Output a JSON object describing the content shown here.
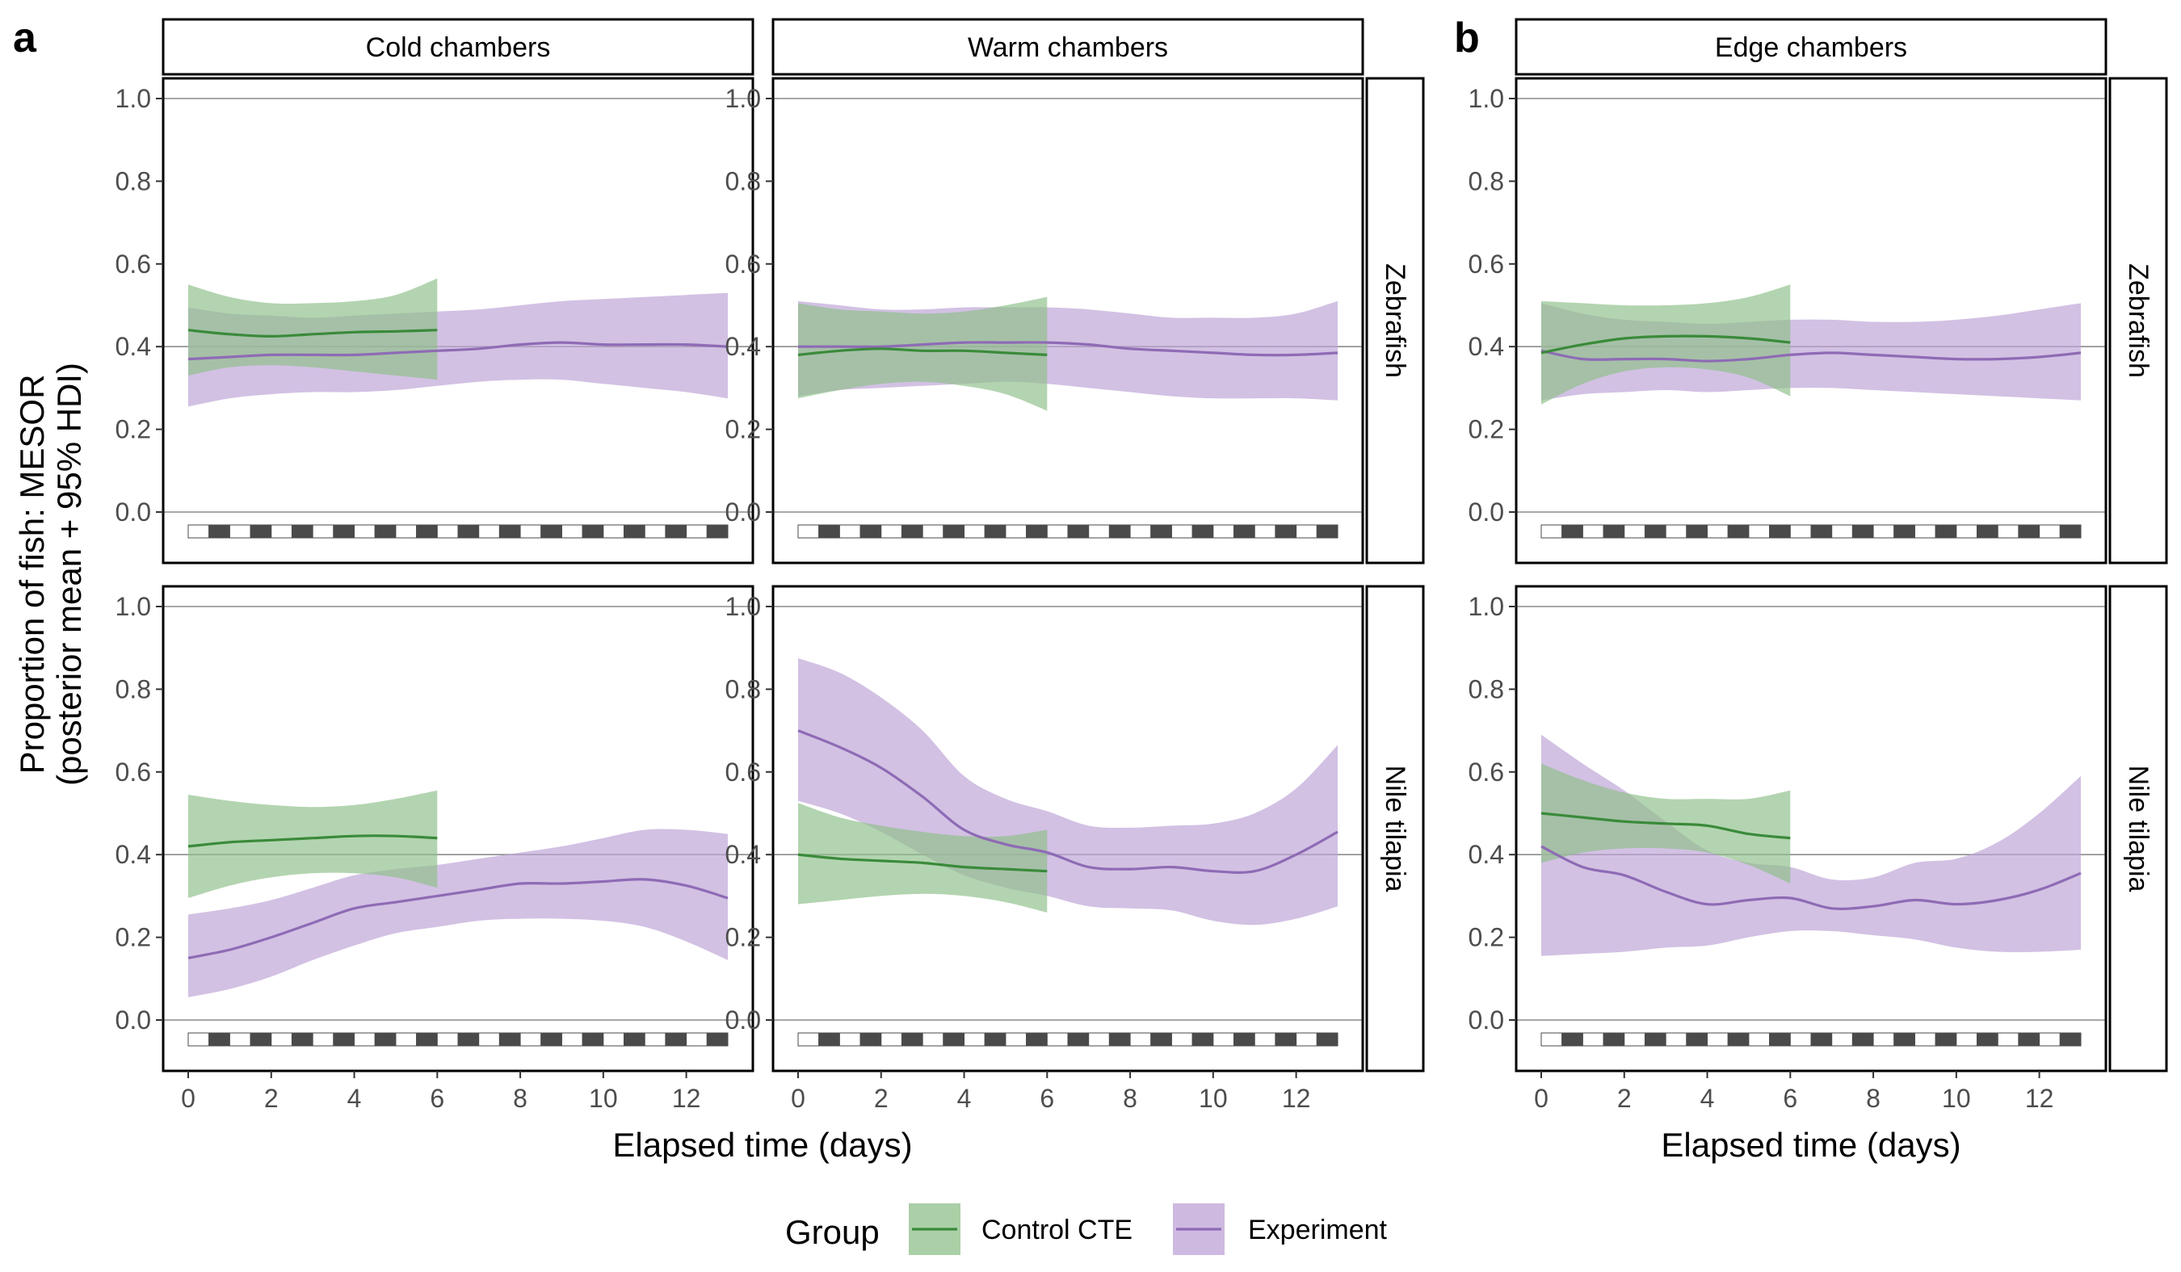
{
  "panel_labels": [
    "a",
    "b"
  ],
  "legend": {
    "title": "Group",
    "items": [
      {
        "label": "Control CTE",
        "color": "#3a8a3a",
        "fill": "#8fbf8a"
      },
      {
        "label": "Experiment",
        "color": "#8e6bb5",
        "fill": "#bda3d6"
      }
    ]
  },
  "chart_data": [
    {
      "type": "line",
      "panel": "a",
      "column": "Cold chambers",
      "row": "Zebrafish",
      "xlabel": "Elapsed time (days)",
      "ylabel": "Proportion of fish: MESOR\n(posterior mean + 95% HDI)",
      "xlim": [
        0,
        13
      ],
      "ylim": [
        0,
        1
      ],
      "xticks": [
        0,
        2,
        4,
        6,
        8,
        10,
        12
      ],
      "yticks": [
        0.0,
        0.2,
        0.4,
        0.6,
        0.8,
        1.0
      ],
      "hlines": [
        0,
        0.4,
        1.0
      ],
      "series": [
        {
          "name": "Control CTE",
          "x": [
            0,
            1,
            2,
            3,
            4,
            5,
            6
          ],
          "y": [
            0.44,
            0.43,
            0.425,
            0.43,
            0.435,
            0.437,
            0.44
          ],
          "lower": [
            0.33,
            0.35,
            0.355,
            0.35,
            0.34,
            0.33,
            0.32
          ],
          "upper": [
            0.55,
            0.52,
            0.505,
            0.505,
            0.51,
            0.525,
            0.565
          ]
        },
        {
          "name": "Experiment",
          "x": [
            0,
            1,
            2,
            3,
            4,
            5,
            6,
            7,
            8,
            9,
            10,
            11,
            12,
            13
          ],
          "y": [
            0.37,
            0.375,
            0.38,
            0.38,
            0.38,
            0.385,
            0.39,
            0.395,
            0.405,
            0.41,
            0.405,
            0.405,
            0.405,
            0.4
          ],
          "lower": [
            0.255,
            0.275,
            0.285,
            0.29,
            0.29,
            0.295,
            0.305,
            0.315,
            0.32,
            0.32,
            0.31,
            0.3,
            0.29,
            0.275
          ],
          "upper": [
            0.495,
            0.48,
            0.475,
            0.47,
            0.475,
            0.48,
            0.485,
            0.49,
            0.5,
            0.51,
            0.515,
            0.52,
            0.525,
            0.53
          ]
        }
      ]
    },
    {
      "type": "line",
      "panel": "a",
      "column": "Warm chambers",
      "row": "Zebrafish",
      "xlim": [
        0,
        13
      ],
      "ylim": [
        0,
        1
      ],
      "xticks": [
        0,
        2,
        4,
        6,
        8,
        10,
        12
      ],
      "yticks": [
        0.0,
        0.2,
        0.4,
        0.6,
        0.8,
        1.0
      ],
      "hlines": [
        0,
        0.4,
        1.0
      ],
      "series": [
        {
          "name": "Control CTE",
          "x": [
            0,
            1,
            2,
            3,
            4,
            5,
            6
          ],
          "y": [
            0.38,
            0.39,
            0.395,
            0.39,
            0.39,
            0.385,
            0.38
          ],
          "lower": [
            0.275,
            0.295,
            0.31,
            0.315,
            0.305,
            0.285,
            0.245
          ],
          "upper": [
            0.505,
            0.49,
            0.485,
            0.48,
            0.485,
            0.5,
            0.52
          ]
        },
        {
          "name": "Experiment",
          "x": [
            0,
            1,
            2,
            3,
            4,
            5,
            6,
            7,
            8,
            9,
            10,
            11,
            12,
            13
          ],
          "y": [
            0.4,
            0.4,
            0.4,
            0.405,
            0.41,
            0.41,
            0.41,
            0.405,
            0.395,
            0.39,
            0.385,
            0.38,
            0.38,
            0.385
          ],
          "lower": [
            0.28,
            0.295,
            0.3,
            0.305,
            0.31,
            0.315,
            0.31,
            0.3,
            0.29,
            0.28,
            0.275,
            0.275,
            0.275,
            0.27
          ],
          "upper": [
            0.51,
            0.5,
            0.49,
            0.49,
            0.495,
            0.495,
            0.495,
            0.49,
            0.48,
            0.47,
            0.47,
            0.47,
            0.48,
            0.51
          ]
        }
      ]
    },
    {
      "type": "line",
      "panel": "a",
      "column": "Cold chambers",
      "row": "Nile tilapia",
      "xlim": [
        0,
        13
      ],
      "ylim": [
        0,
        1
      ],
      "xticks": [
        0,
        2,
        4,
        6,
        8,
        10,
        12
      ],
      "yticks": [
        0.0,
        0.2,
        0.4,
        0.6,
        0.8,
        1.0
      ],
      "hlines": [
        0,
        0.4,
        1.0
      ],
      "series": [
        {
          "name": "Control CTE",
          "x": [
            0,
            1,
            2,
            3,
            4,
            5,
            6
          ],
          "y": [
            0.42,
            0.43,
            0.435,
            0.44,
            0.445,
            0.445,
            0.44
          ],
          "lower": [
            0.295,
            0.325,
            0.345,
            0.355,
            0.355,
            0.345,
            0.32
          ],
          "upper": [
            0.545,
            0.53,
            0.52,
            0.515,
            0.52,
            0.535,
            0.555
          ]
        },
        {
          "name": "Experiment",
          "x": [
            0,
            1,
            2,
            3,
            4,
            5,
            6,
            7,
            8,
            9,
            10,
            11,
            12,
            13
          ],
          "y": [
            0.15,
            0.17,
            0.2,
            0.235,
            0.27,
            0.285,
            0.3,
            0.315,
            0.33,
            0.33,
            0.335,
            0.34,
            0.325,
            0.295
          ],
          "lower": [
            0.055,
            0.075,
            0.105,
            0.145,
            0.18,
            0.21,
            0.225,
            0.24,
            0.245,
            0.245,
            0.24,
            0.225,
            0.19,
            0.145
          ],
          "upper": [
            0.255,
            0.27,
            0.29,
            0.32,
            0.35,
            0.365,
            0.375,
            0.39,
            0.405,
            0.42,
            0.44,
            0.46,
            0.46,
            0.45
          ]
        }
      ]
    },
    {
      "type": "line",
      "panel": "a",
      "column": "Warm chambers",
      "row": "Nile tilapia",
      "xlim": [
        0,
        13
      ],
      "ylim": [
        0,
        1
      ],
      "xticks": [
        0,
        2,
        4,
        6,
        8,
        10,
        12
      ],
      "yticks": [
        0.0,
        0.2,
        0.4,
        0.6,
        0.8,
        1.0
      ],
      "hlines": [
        0,
        0.4,
        1.0
      ],
      "series": [
        {
          "name": "Control CTE",
          "x": [
            0,
            1,
            2,
            3,
            4,
            5,
            6
          ],
          "y": [
            0.4,
            0.39,
            0.385,
            0.38,
            0.37,
            0.365,
            0.36
          ],
          "lower": [
            0.28,
            0.29,
            0.3,
            0.305,
            0.3,
            0.285,
            0.26
          ],
          "upper": [
            0.525,
            0.49,
            0.47,
            0.455,
            0.445,
            0.445,
            0.46
          ]
        },
        {
          "name": "Experiment",
          "x": [
            0,
            1,
            2,
            3,
            4,
            5,
            6,
            7,
            8,
            9,
            10,
            11,
            12,
            13
          ],
          "y": [
            0.7,
            0.66,
            0.61,
            0.54,
            0.46,
            0.425,
            0.405,
            0.37,
            0.365,
            0.37,
            0.36,
            0.36,
            0.4,
            0.455
          ],
          "lower": [
            0.53,
            0.5,
            0.455,
            0.4,
            0.35,
            0.32,
            0.3,
            0.275,
            0.27,
            0.265,
            0.24,
            0.23,
            0.245,
            0.275
          ],
          "upper": [
            0.875,
            0.84,
            0.78,
            0.7,
            0.59,
            0.535,
            0.505,
            0.47,
            0.465,
            0.47,
            0.475,
            0.5,
            0.56,
            0.665
          ]
        }
      ]
    },
    {
      "type": "line",
      "panel": "b",
      "column": "Edge chambers",
      "row": "Zebrafish",
      "xlabel": "Elapsed time (days)",
      "xlim": [
        0,
        13
      ],
      "ylim": [
        0,
        1
      ],
      "xticks": [
        0,
        2,
        4,
        6,
        8,
        10,
        12
      ],
      "yticks": [
        0.0,
        0.2,
        0.4,
        0.6,
        0.8,
        1.0
      ],
      "hlines": [
        0,
        0.4,
        1.0
      ],
      "series": [
        {
          "name": "Control CTE",
          "x": [
            0,
            1,
            2,
            3,
            4,
            5,
            6
          ],
          "y": [
            0.385,
            0.405,
            0.42,
            0.425,
            0.425,
            0.42,
            0.41
          ],
          "lower": [
            0.26,
            0.31,
            0.34,
            0.35,
            0.345,
            0.325,
            0.28
          ],
          "upper": [
            0.51,
            0.505,
            0.5,
            0.5,
            0.505,
            0.52,
            0.55
          ]
        },
        {
          "name": "Experiment",
          "x": [
            0,
            1,
            2,
            3,
            4,
            5,
            6,
            7,
            8,
            9,
            10,
            11,
            12,
            13
          ],
          "y": [
            0.39,
            0.37,
            0.37,
            0.37,
            0.365,
            0.37,
            0.38,
            0.385,
            0.38,
            0.375,
            0.37,
            0.37,
            0.375,
            0.385
          ],
          "lower": [
            0.27,
            0.285,
            0.29,
            0.295,
            0.29,
            0.295,
            0.3,
            0.3,
            0.295,
            0.29,
            0.285,
            0.28,
            0.275,
            0.27
          ],
          "upper": [
            0.505,
            0.48,
            0.465,
            0.46,
            0.455,
            0.46,
            0.465,
            0.465,
            0.46,
            0.46,
            0.465,
            0.475,
            0.49,
            0.505
          ]
        }
      ]
    },
    {
      "type": "line",
      "panel": "b",
      "column": "Edge chambers",
      "row": "Nile tilapia",
      "xlim": [
        0,
        13
      ],
      "ylim": [
        0,
        1
      ],
      "xticks": [
        0,
        2,
        4,
        6,
        8,
        10,
        12
      ],
      "yticks": [
        0.0,
        0.2,
        0.4,
        0.6,
        0.8,
        1.0
      ],
      "hlines": [
        0,
        0.4,
        1.0
      ],
      "series": [
        {
          "name": "Control CTE",
          "x": [
            0,
            1,
            2,
            3,
            4,
            5,
            6
          ],
          "y": [
            0.5,
            0.49,
            0.48,
            0.475,
            0.47,
            0.45,
            0.44
          ],
          "lower": [
            0.38,
            0.405,
            0.415,
            0.415,
            0.405,
            0.375,
            0.33
          ],
          "upper": [
            0.62,
            0.58,
            0.55,
            0.535,
            0.535,
            0.535,
            0.555
          ]
        },
        {
          "name": "Experiment",
          "x": [
            0,
            1,
            2,
            3,
            4,
            5,
            6,
            7,
            8,
            9,
            10,
            11,
            12,
            13
          ],
          "y": [
            0.42,
            0.37,
            0.35,
            0.31,
            0.28,
            0.29,
            0.295,
            0.27,
            0.275,
            0.29,
            0.28,
            0.29,
            0.315,
            0.355
          ],
          "lower": [
            0.155,
            0.16,
            0.165,
            0.175,
            0.18,
            0.2,
            0.215,
            0.215,
            0.205,
            0.195,
            0.175,
            0.165,
            0.165,
            0.17
          ],
          "upper": [
            0.69,
            0.62,
            0.555,
            0.48,
            0.41,
            0.38,
            0.37,
            0.34,
            0.345,
            0.38,
            0.39,
            0.43,
            0.5,
            0.59
          ]
        }
      ]
    }
  ]
}
